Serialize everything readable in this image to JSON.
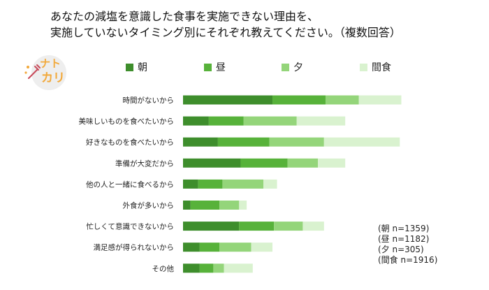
{
  "title": {
    "line1": "あなたの減塩を意識した食事を実施できない理由を、",
    "line2": "実施していないタイミング別にそれぞれ教えてください。（複数回答）"
  },
  "logo": {
    "text_1": "ナト",
    "text_2": "カリ"
  },
  "colors": {
    "asa": "#3e8e2c",
    "hiru": "#57b23a",
    "yu": "#94d57a",
    "kanshoku": "#d9f2cf"
  },
  "chart_data": {
    "type": "bar",
    "orientation": "horizontal",
    "stacked": true,
    "categories": [
      "時間がないから",
      "美味しいものを食べたいから",
      "好きなものを食べたいから",
      "準備が大変だから",
      "他の人と一緒に食べるから",
      "外食が多いから",
      "忙しくて意識できないから",
      "満足感が得られないから",
      "その他"
    ],
    "series": [
      {
        "name": "朝",
        "color": "#3e8e2c",
        "values": [
          29.5,
          8.5,
          11.5,
          19.0,
          5.0,
          2.5,
          18.5,
          5.5,
          5.5
        ]
      },
      {
        "name": "昼",
        "color": "#57b23a",
        "values": [
          17.5,
          11.5,
          17.0,
          15.5,
          8.0,
          9.5,
          11.5,
          6.5,
          4.5
        ]
      },
      {
        "name": "夕",
        "color": "#94d57a",
        "values": [
          11.0,
          17.5,
          18.0,
          10.0,
          13.5,
          6.5,
          9.5,
          10.5,
          3.5
        ]
      },
      {
        "name": "間食",
        "color": "#d9f2cf",
        "values": [
          14.0,
          16.0,
          25.0,
          9.0,
          4.5,
          2.5,
          7.0,
          7.0,
          9.5
        ]
      }
    ],
    "xlim": [
      0,
      100
    ],
    "xlabel": "",
    "ylabel": "",
    "legend": "top"
  },
  "notes": [
    "(朝  n=1359)",
    "(昼  n=1182)",
    "(夕  n=305)",
    "(間食 n=1916)"
  ]
}
